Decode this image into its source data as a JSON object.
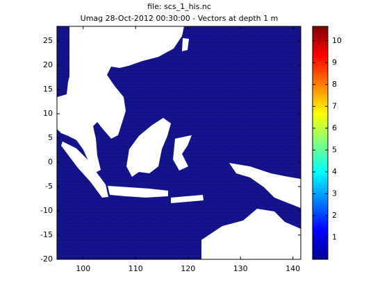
{
  "chart_data": {
    "type": "map",
    "title": "file: scs_1_his.nc",
    "subtitle": "Umag 28-Oct-2012 00:30:00  - Vectors at depth 1 m",
    "xlim": [
      95,
      141.5
    ],
    "xticks": [
      100,
      110,
      120,
      130,
      140
    ],
    "ylim": [
      -20,
      28
    ],
    "yticks": [
      -20,
      -15,
      -10,
      -5,
      0,
      5,
      10,
      15,
      20,
      25
    ],
    "colorbar": {
      "colormap": "jet",
      "clim": [
        0,
        10.66
      ],
      "ticks": [
        1,
        2,
        3,
        4,
        5,
        6,
        7,
        8,
        9,
        10
      ]
    },
    "color": "#14148f"
  }
}
